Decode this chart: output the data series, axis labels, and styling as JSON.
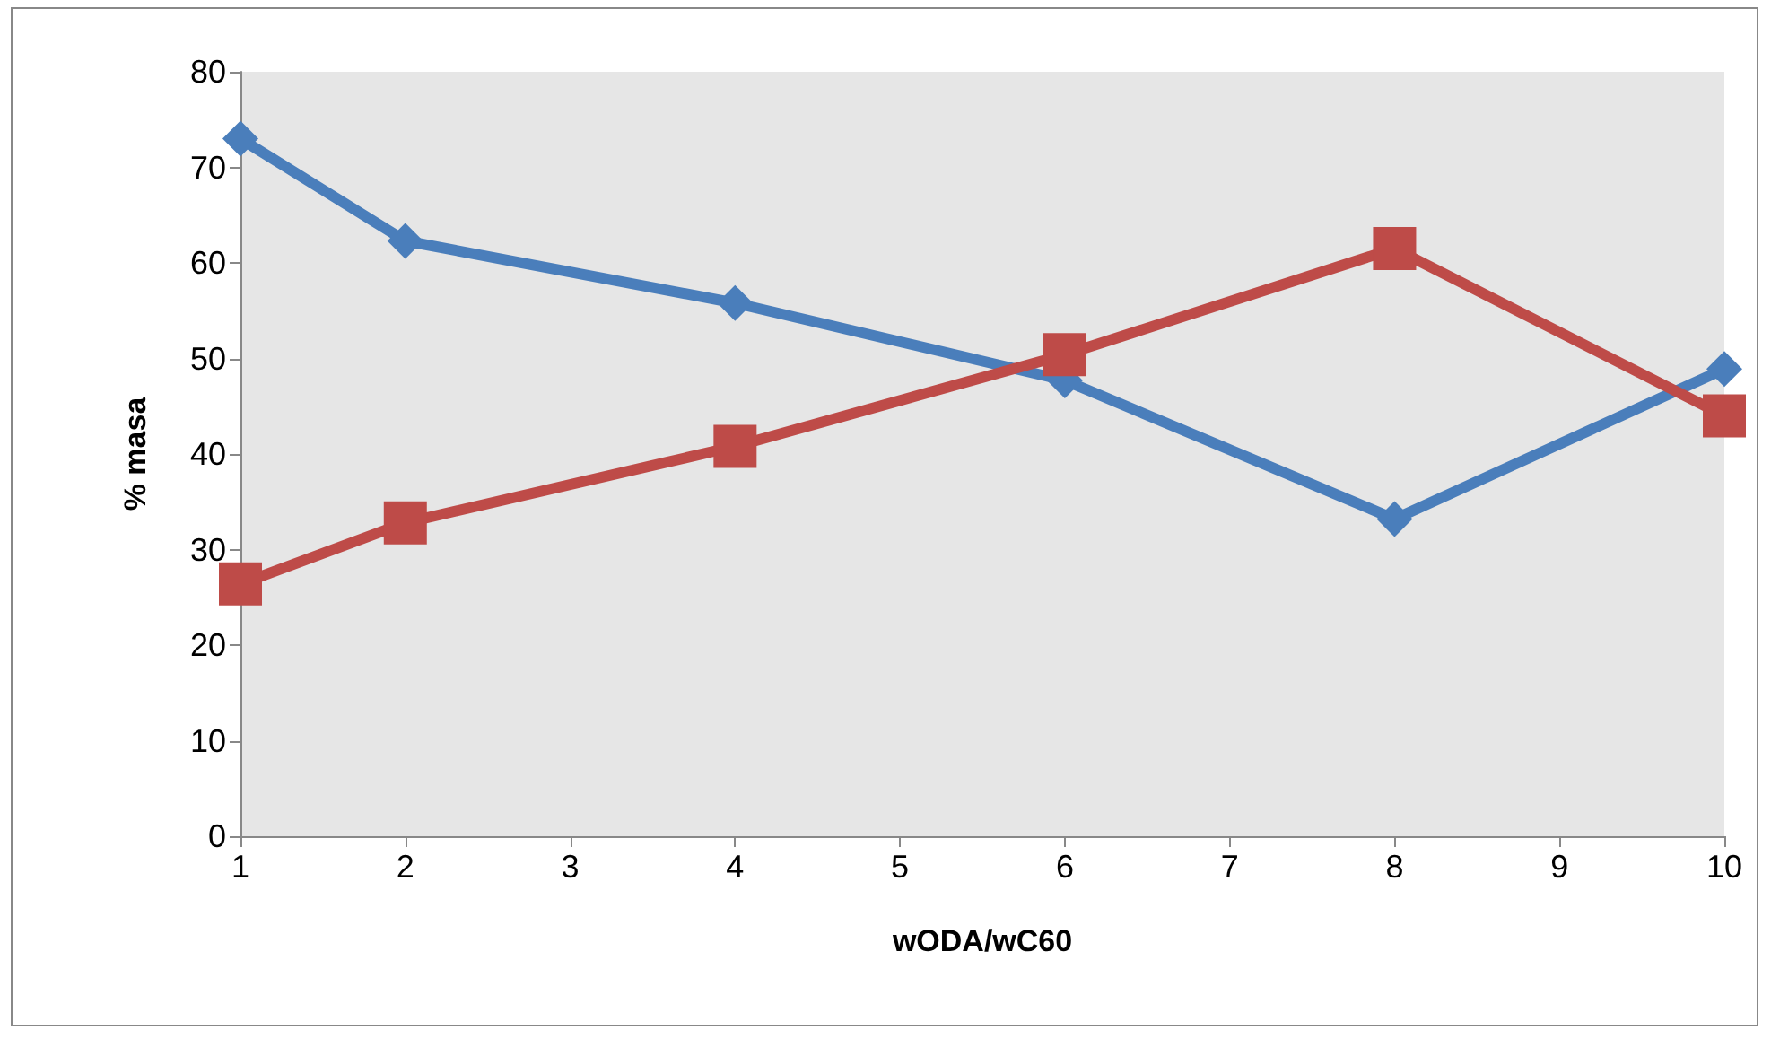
{
  "chart_data": {
    "type": "line",
    "xlabel": "wODA/wC60",
    "ylabel": "% masa",
    "x": [
      1,
      2,
      4,
      6,
      8,
      10
    ],
    "series": [
      {
        "color": "#4a7ebb",
        "marker": "diamond",
        "values": [
          73,
          62.3,
          55.8,
          47.7,
          33.2,
          48.9
        ]
      },
      {
        "color": "#be4b48",
        "marker": "square",
        "values": [
          26.4,
          32.8,
          40.8,
          50.4,
          61.5,
          44.0
        ]
      }
    ],
    "xlim": [
      1,
      10
    ],
    "xticks": [
      1,
      2,
      3,
      4,
      5,
      6,
      7,
      8,
      9,
      10
    ],
    "ylim": [
      0,
      80
    ],
    "yticks": [
      0,
      10,
      20,
      30,
      40,
      50,
      60,
      70,
      80
    ],
    "grid": false,
    "line_style": "solid"
  }
}
